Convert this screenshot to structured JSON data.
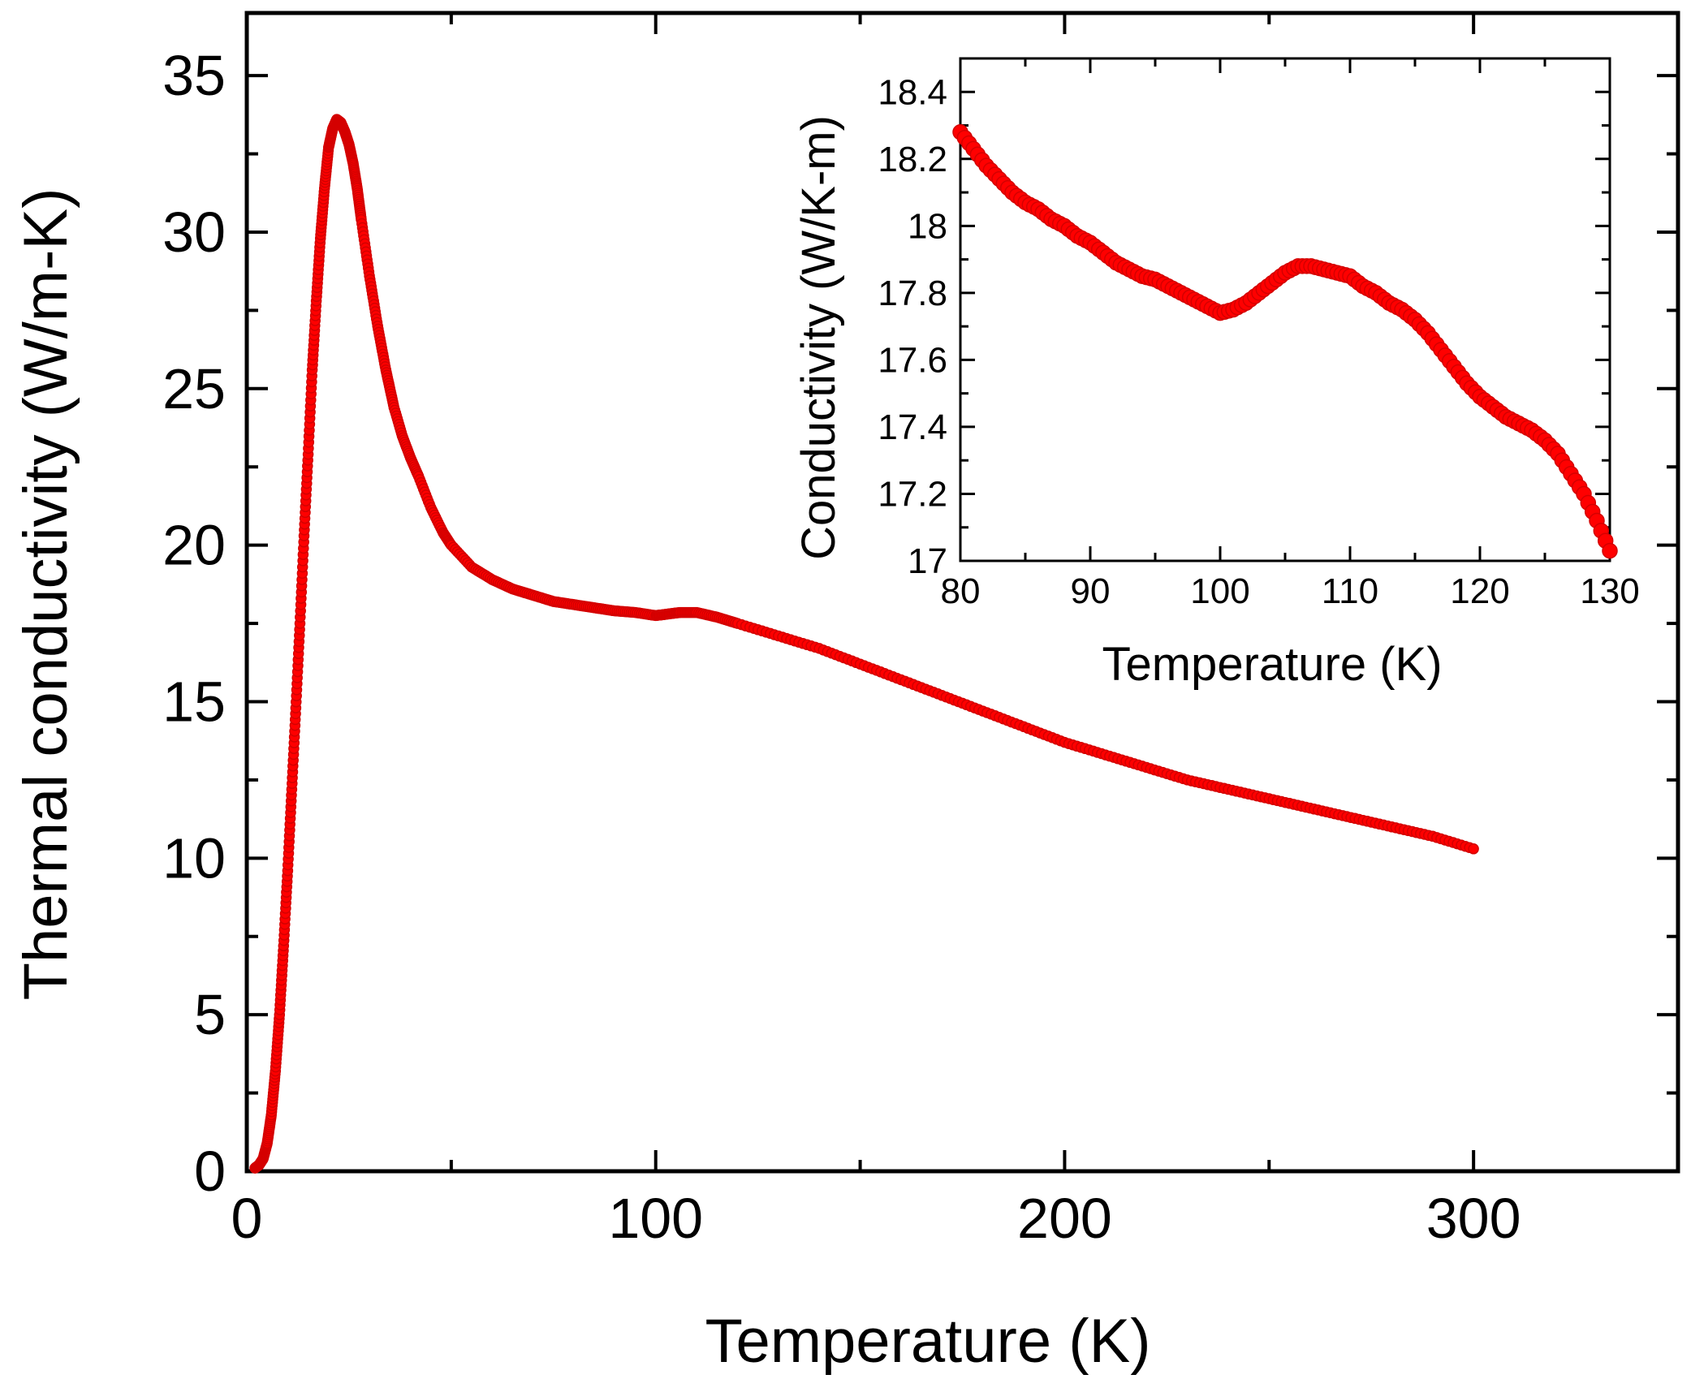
{
  "chart_data": [
    {
      "type": "scatter",
      "panel": "main",
      "title": "",
      "xlabel": "Temperature (K)",
      "ylabel": "Thermal conductivity (W/m-K)",
      "xlim": [
        0,
        350
      ],
      "ylim": [
        0,
        37
      ],
      "xticks": [
        0,
        100,
        200,
        300
      ],
      "yticks": [
        0,
        5,
        10,
        15,
        20,
        25,
        30,
        35
      ],
      "grid": false,
      "marker_color": "#ff0000",
      "series": [
        {
          "name": "Thermal conductivity",
          "x": [
            2,
            3,
            4,
            5,
            6,
            7,
            8,
            9,
            10,
            11,
            12,
            13,
            14,
            15,
            16,
            17,
            18,
            19,
            20,
            21,
            22,
            23,
            24,
            25,
            26,
            27,
            28,
            30,
            32,
            34,
            36,
            38,
            40,
            42,
            45,
            48,
            50,
            55,
            60,
            65,
            70,
            75,
            80,
            85,
            90,
            95,
            100,
            103,
            106,
            110,
            115,
            120,
            130,
            140,
            150,
            160,
            170,
            180,
            190,
            200,
            210,
            220,
            230,
            240,
            250,
            260,
            270,
            280,
            290,
            300
          ],
          "y": [
            0.1,
            0.2,
            0.4,
            0.9,
            1.8,
            3.2,
            5.0,
            7.2,
            9.6,
            12.2,
            14.8,
            17.5,
            20.3,
            22.9,
            25.6,
            27.8,
            29.8,
            31.4,
            32.7,
            33.3,
            33.6,
            33.5,
            33.2,
            32.8,
            32.2,
            31.4,
            30.4,
            28.6,
            27.0,
            25.6,
            24.4,
            23.5,
            22.8,
            22.2,
            21.2,
            20.4,
            20.0,
            19.3,
            18.9,
            18.6,
            18.4,
            18.2,
            18.1,
            18.0,
            17.9,
            17.85,
            17.75,
            17.8,
            17.85,
            17.85,
            17.7,
            17.5,
            17.1,
            16.7,
            16.2,
            15.7,
            15.2,
            14.7,
            14.2,
            13.7,
            13.3,
            12.9,
            12.5,
            12.2,
            11.9,
            11.6,
            11.3,
            11.0,
            10.7,
            10.3
          ]
        }
      ]
    },
    {
      "type": "scatter",
      "panel": "inset",
      "title": "",
      "xlabel": "Temperature (K)",
      "ylabel": "Conductivity (W/K-m)",
      "xlim": [
        80,
        130
      ],
      "ylim": [
        17,
        18.5
      ],
      "xticks": [
        80,
        90,
        100,
        110,
        120,
        130
      ],
      "yticks": [
        17,
        17.2,
        17.4,
        17.6,
        17.8,
        18,
        18.2,
        18.4
      ],
      "ytick_labels": [
        "17",
        "17.2",
        "17.4",
        "17.6",
        "17.8",
        "18",
        "18.2",
        "18.4"
      ],
      "grid": false,
      "marker_color": "#ff0000",
      "series": [
        {
          "name": "Conductivity",
          "x": [
            80,
            81,
            82,
            83,
            84,
            85,
            86,
            87,
            88,
            89,
            90,
            91,
            92,
            93,
            94,
            95,
            96,
            97,
            98,
            99,
            100,
            101,
            102,
            103,
            104,
            105,
            106,
            107,
            108,
            109,
            110,
            111,
            112,
            113,
            114,
            115,
            116,
            117,
            118,
            119,
            120,
            121,
            122,
            123,
            124,
            125,
            126,
            127,
            128,
            129,
            130
          ],
          "y": [
            18.28,
            18.23,
            18.18,
            18.14,
            18.1,
            18.07,
            18.05,
            18.02,
            18.0,
            17.97,
            17.95,
            17.92,
            17.89,
            17.87,
            17.85,
            17.84,
            17.82,
            17.8,
            17.78,
            17.76,
            17.74,
            17.75,
            17.77,
            17.8,
            17.83,
            17.86,
            17.88,
            17.88,
            17.87,
            17.86,
            17.85,
            17.82,
            17.8,
            17.77,
            17.75,
            17.72,
            17.68,
            17.63,
            17.58,
            17.53,
            17.49,
            17.46,
            17.43,
            17.41,
            17.39,
            17.36,
            17.32,
            17.26,
            17.2,
            17.12,
            17.03
          ]
        }
      ]
    }
  ]
}
